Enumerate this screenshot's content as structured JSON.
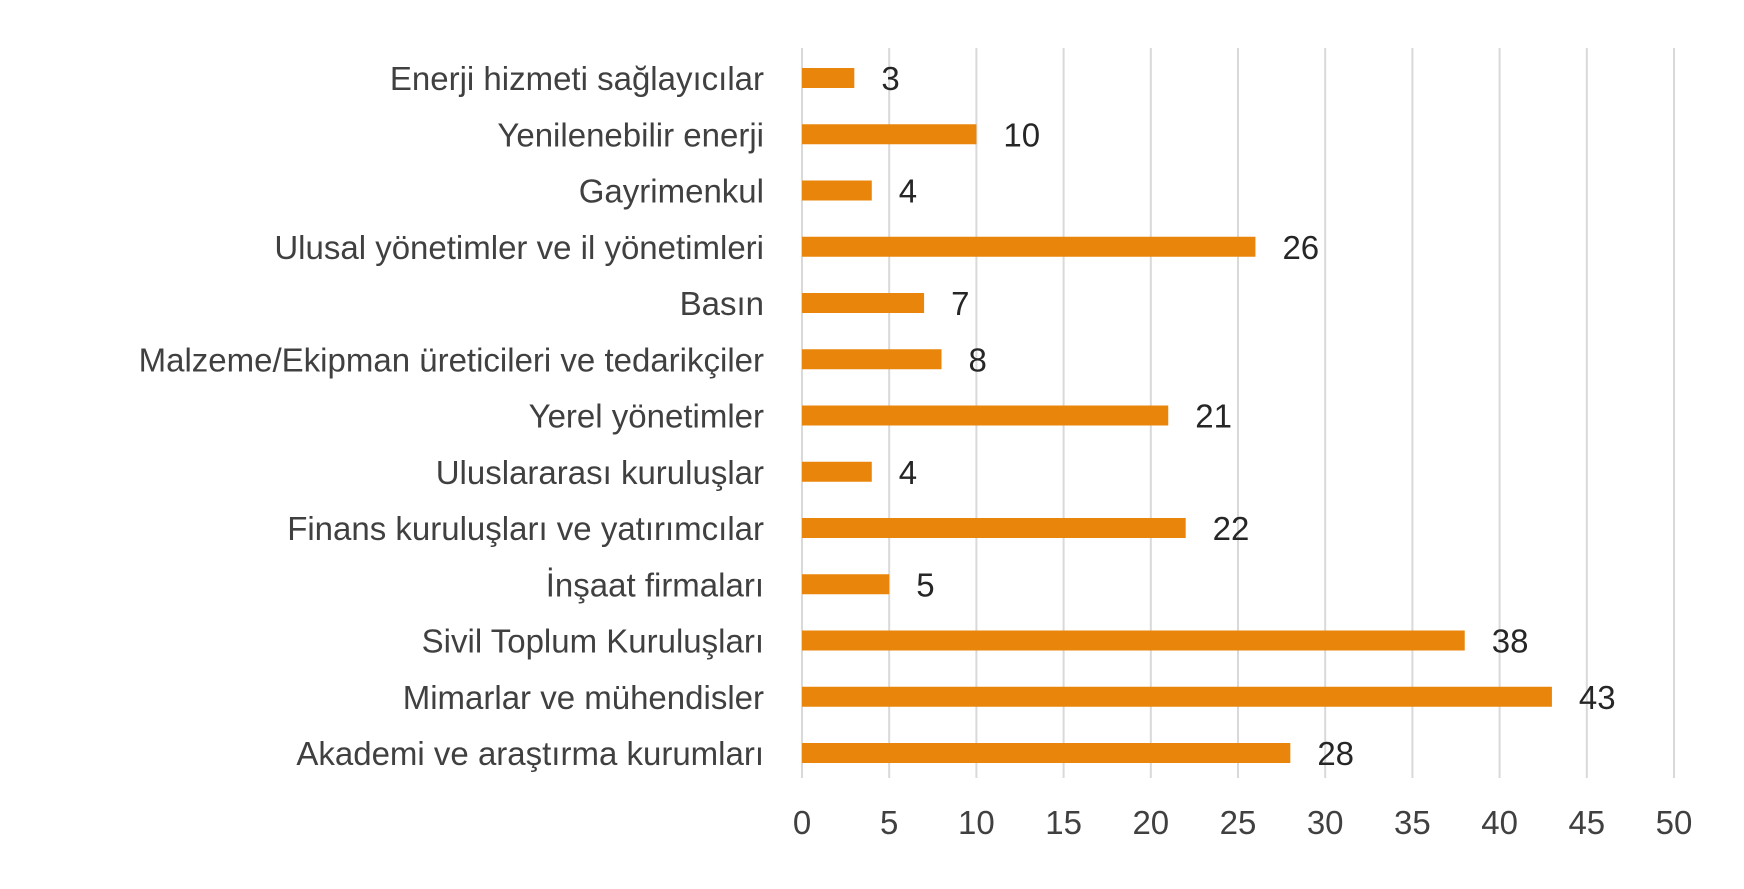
{
  "chart_data": {
    "type": "bar",
    "orientation": "horizontal",
    "categories": [
      "Enerji hizmeti sağlayıcılar",
      "Yenilenebilir enerji",
      "Gayrimenkul",
      "Ulusal yönetimler ve il yönetimleri",
      "Basın",
      "Malzeme/Ekipman üreticileri ve tedarikçiler",
      "Yerel yönetimler",
      "Uluslararası kuruluşlar",
      "Finans kuruluşları ve yatırımcılar",
      "İnşaat firmaları",
      "Sivil Toplum Kuruluşları",
      "Mimarlar ve mühendisler",
      "Akademi ve araştırma kurumları"
    ],
    "values": [
      3,
      10,
      4,
      26,
      7,
      8,
      21,
      4,
      22,
      5,
      38,
      43,
      28
    ],
    "xlim": [
      0,
      50
    ],
    "xticks": [
      0,
      5,
      10,
      15,
      20,
      25,
      30,
      35,
      40,
      45,
      50
    ],
    "bar_color": "#E8850A",
    "grid": "vertical",
    "data_labels": true,
    "legend": "none"
  }
}
